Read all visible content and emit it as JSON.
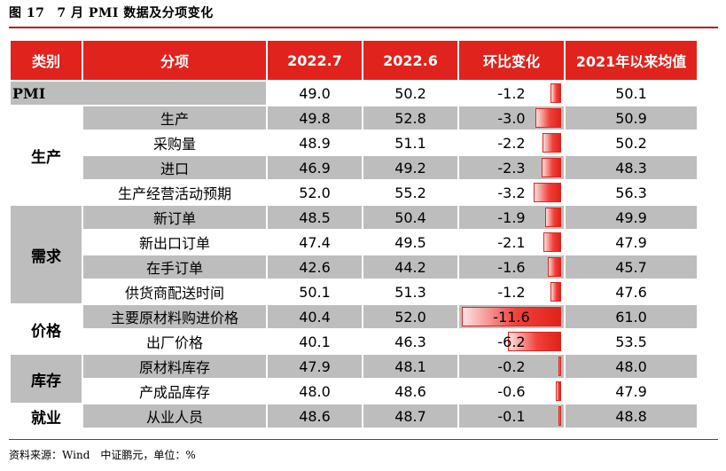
{
  "title": {
    "figure": "图 17",
    "text": "7 月 PMI 数据及分项变化"
  },
  "headers": [
    "类别",
    "分项",
    "2022.7",
    "2022.6",
    "环比变化",
    "2021年以来均值"
  ],
  "pmi": {
    "label": "PMI",
    "v2022_7": "49.0",
    "v2022_6": "50.2",
    "change": "-1.2",
    "change_value": -1.2,
    "avg": "50.1"
  },
  "groups": [
    {
      "category": "生产",
      "rows": [
        {
          "item": "生产",
          "v2022_7": "49.8",
          "v2022_6": "52.8",
          "change": "-3.0",
          "change_value": -3.0,
          "avg": "50.9"
        },
        {
          "item": "采购量",
          "v2022_7": "48.9",
          "v2022_6": "51.1",
          "change": "-2.2",
          "change_value": -2.2,
          "avg": "50.2"
        },
        {
          "item": "进口",
          "v2022_7": "46.9",
          "v2022_6": "49.2",
          "change": "-2.3",
          "change_value": -2.3,
          "avg": "48.3"
        },
        {
          "item": "生产经营活动预期",
          "v2022_7": "52.0",
          "v2022_6": "55.2",
          "change": "-3.2",
          "change_value": -3.2,
          "avg": "56.3"
        }
      ]
    },
    {
      "category": "需求",
      "rows": [
        {
          "item": "新订单",
          "v2022_7": "48.5",
          "v2022_6": "50.4",
          "change": "-1.9",
          "change_value": -1.9,
          "avg": "49.9"
        },
        {
          "item": "新出口订单",
          "v2022_7": "47.4",
          "v2022_6": "49.5",
          "change": "-2.1",
          "change_value": -2.1,
          "avg": "47.9"
        },
        {
          "item": "在手订单",
          "v2022_7": "42.6",
          "v2022_6": "44.2",
          "change": "-1.6",
          "change_value": -1.6,
          "avg": "45.7"
        },
        {
          "item": "供货商配送时间",
          "v2022_7": "50.1",
          "v2022_6": "51.3",
          "change": "-1.2",
          "change_value": -1.2,
          "avg": "47.6"
        }
      ]
    },
    {
      "category": "价格",
      "rows": [
        {
          "item": "主要原材料购进价格",
          "v2022_7": "40.4",
          "v2022_6": "52.0",
          "change": "-11.6",
          "change_value": -11.6,
          "avg": "61.0"
        },
        {
          "item": "出厂价格",
          "v2022_7": "40.1",
          "v2022_6": "46.3",
          "change": "-6.2",
          "change_value": -6.2,
          "avg": "53.5"
        }
      ]
    },
    {
      "category": "库存",
      "rows": [
        {
          "item": "原材料库存",
          "v2022_7": "47.9",
          "v2022_6": "48.1",
          "change": "-0.2",
          "change_value": -0.2,
          "avg": "48.0"
        },
        {
          "item": "产成品库存",
          "v2022_7": "48.0",
          "v2022_6": "48.6",
          "change": "-0.6",
          "change_value": -0.6,
          "avg": "47.9"
        }
      ]
    },
    {
      "category": "就业",
      "rows": [
        {
          "item": "从业人员",
          "v2022_7": "48.6",
          "v2022_6": "48.7",
          "change": "-0.1",
          "change_value": -0.1,
          "avg": "48.8"
        }
      ]
    }
  ],
  "source": "资料来源：Wind　中证鹏元，单位：%",
  "colors": {
    "accent": "#e0231c",
    "row_grey": "#bdbdbd",
    "rule": "#b71c1c"
  }
}
